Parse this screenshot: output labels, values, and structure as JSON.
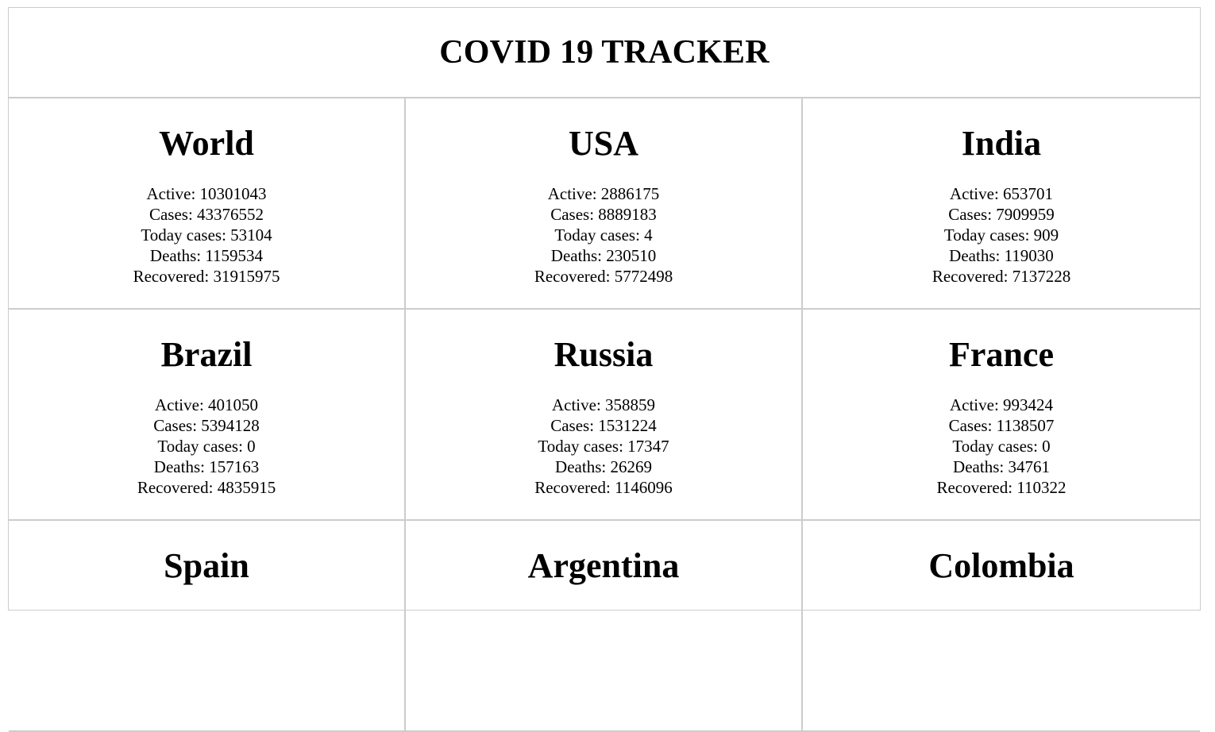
{
  "app": {
    "title": "COVID 19 TRACKER"
  },
  "labels": {
    "active": "Active: ",
    "cases": "Cases: ",
    "today_cases": "Today cases: ",
    "deaths": "Deaths: ",
    "recovered": "Recovered: "
  },
  "countries": [
    {
      "name": "World",
      "active": "10301043",
      "cases": "43376552",
      "today_cases": "53104",
      "deaths": "1159534",
      "recovered": "31915975"
    },
    {
      "name": "USA",
      "active": "2886175",
      "cases": "8889183",
      "today_cases": "4",
      "deaths": "230510",
      "recovered": "5772498"
    },
    {
      "name": "India",
      "active": "653701",
      "cases": "7909959",
      "today_cases": "909",
      "deaths": "119030",
      "recovered": "7137228"
    },
    {
      "name": "Brazil",
      "active": "401050",
      "cases": "5394128",
      "today_cases": "0",
      "deaths": "157163",
      "recovered": "4835915"
    },
    {
      "name": "Russia",
      "active": "358859",
      "cases": "1531224",
      "today_cases": "17347",
      "deaths": "26269",
      "recovered": "1146096"
    },
    {
      "name": "France",
      "active": "993424",
      "cases": "1138507",
      "today_cases": "0",
      "deaths": "34761",
      "recovered": "110322"
    },
    {
      "name": "Spain"
    },
    {
      "name": "Argentina"
    },
    {
      "name": "Colombia"
    }
  ]
}
